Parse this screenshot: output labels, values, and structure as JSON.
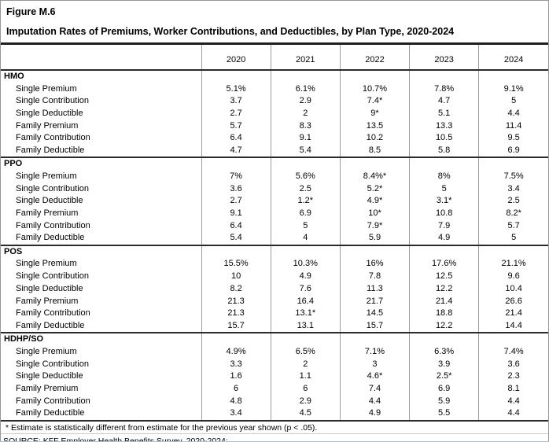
{
  "figure": {
    "label": "Figure M.6",
    "title": "Imputation Rates of Premiums, Worker Contributions, and Deductibles, by Plan Type, 2020-2024"
  },
  "table": {
    "years": [
      "2020",
      "2021",
      "2022",
      "2023",
      "2024"
    ],
    "sections": [
      {
        "name": "HMO",
        "rows": [
          {
            "label": "Single Premium",
            "values": [
              "5.1%",
              "6.1%",
              "10.7%",
              "7.8%",
              "9.1%"
            ]
          },
          {
            "label": "Single Contribution",
            "values": [
              "3.7",
              "2.9",
              "7.4*",
              "4.7",
              "5"
            ]
          },
          {
            "label": "Single Deductible",
            "values": [
              "2.7",
              "2",
              "9*",
              "5.1",
              "4.4"
            ]
          },
          {
            "label": "Family Premium",
            "values": [
              "5.7",
              "8.3",
              "13.5",
              "13.3",
              "11.4"
            ]
          },
          {
            "label": "Family Contribution",
            "values": [
              "6.4",
              "9.1",
              "10.2",
              "10.5",
              "9.5"
            ]
          },
          {
            "label": "Family Deductible",
            "values": [
              "4.7",
              "5.4",
              "8.5",
              "5.8",
              "6.9"
            ]
          }
        ]
      },
      {
        "name": "PPO",
        "rows": [
          {
            "label": "Single Premium",
            "values": [
              "7%",
              "5.6%",
              "8.4%*",
              "8%",
              "7.5%"
            ]
          },
          {
            "label": "Single Contribution",
            "values": [
              "3.6",
              "2.5",
              "5.2*",
              "5",
              "3.4"
            ]
          },
          {
            "label": "Single Deductible",
            "values": [
              "2.7",
              "1.2*",
              "4.9*",
              "3.1*",
              "2.5"
            ]
          },
          {
            "label": "Family Premium",
            "values": [
              "9.1",
              "6.9",
              "10*",
              "10.8",
              "8.2*"
            ]
          },
          {
            "label": "Family Contribution",
            "values": [
              "6.4",
              "5",
              "7.9*",
              "7.9",
              "5.7"
            ]
          },
          {
            "label": "Family Deductible",
            "values": [
              "5.4",
              "4",
              "5.9",
              "4.9",
              "5"
            ]
          }
        ]
      },
      {
        "name": "POS",
        "rows": [
          {
            "label": "Single Premium",
            "values": [
              "15.5%",
              "10.3%",
              "16%",
              "17.6%",
              "21.1%"
            ]
          },
          {
            "label": "Single Contribution",
            "values": [
              "10",
              "4.9",
              "7.8",
              "12.5",
              "9.6"
            ]
          },
          {
            "label": "Single Deductible",
            "values": [
              "8.2",
              "7.6",
              "11.3",
              "12.2",
              "10.4"
            ]
          },
          {
            "label": "Family Premium",
            "values": [
              "21.3",
              "16.4",
              "21.7",
              "21.4",
              "26.6"
            ]
          },
          {
            "label": "Family Contribution",
            "values": [
              "21.3",
              "13.1*",
              "14.5",
              "18.8",
              "21.4"
            ]
          },
          {
            "label": "Family Deductible",
            "values": [
              "15.7",
              "13.1",
              "15.7",
              "12.2",
              "14.4"
            ]
          }
        ]
      },
      {
        "name": "HDHP/SO",
        "rows": [
          {
            "label": "Single Premium",
            "values": [
              "4.9%",
              "6.5%",
              "7.1%",
              "6.3%",
              "7.4%"
            ]
          },
          {
            "label": "Single Contribution",
            "values": [
              "3.3",
              "2",
              "3",
              "3.9",
              "3.6"
            ]
          },
          {
            "label": "Single Deductible",
            "values": [
              "1.6",
              "1.1",
              "4.6*",
              "2.5*",
              "2.3"
            ]
          },
          {
            "label": "Family Premium",
            "values": [
              "6",
              "6",
              "7.4",
              "6.9",
              "8.1"
            ]
          },
          {
            "label": "Family Contribution",
            "values": [
              "4.8",
              "2.9",
              "4.4",
              "5.9",
              "4.4"
            ]
          },
          {
            "label": "Family Deductible",
            "values": [
              "3.4",
              "4.5",
              "4.9",
              "5.5",
              "4.4"
            ]
          }
        ]
      }
    ]
  },
  "footnotes": {
    "asterisk": "* Estimate is statistically different from estimate for the previous year shown (p < .05).",
    "source": "SOURCE: KFF Employer Health Benefits Survey, 2020-2024;"
  }
}
